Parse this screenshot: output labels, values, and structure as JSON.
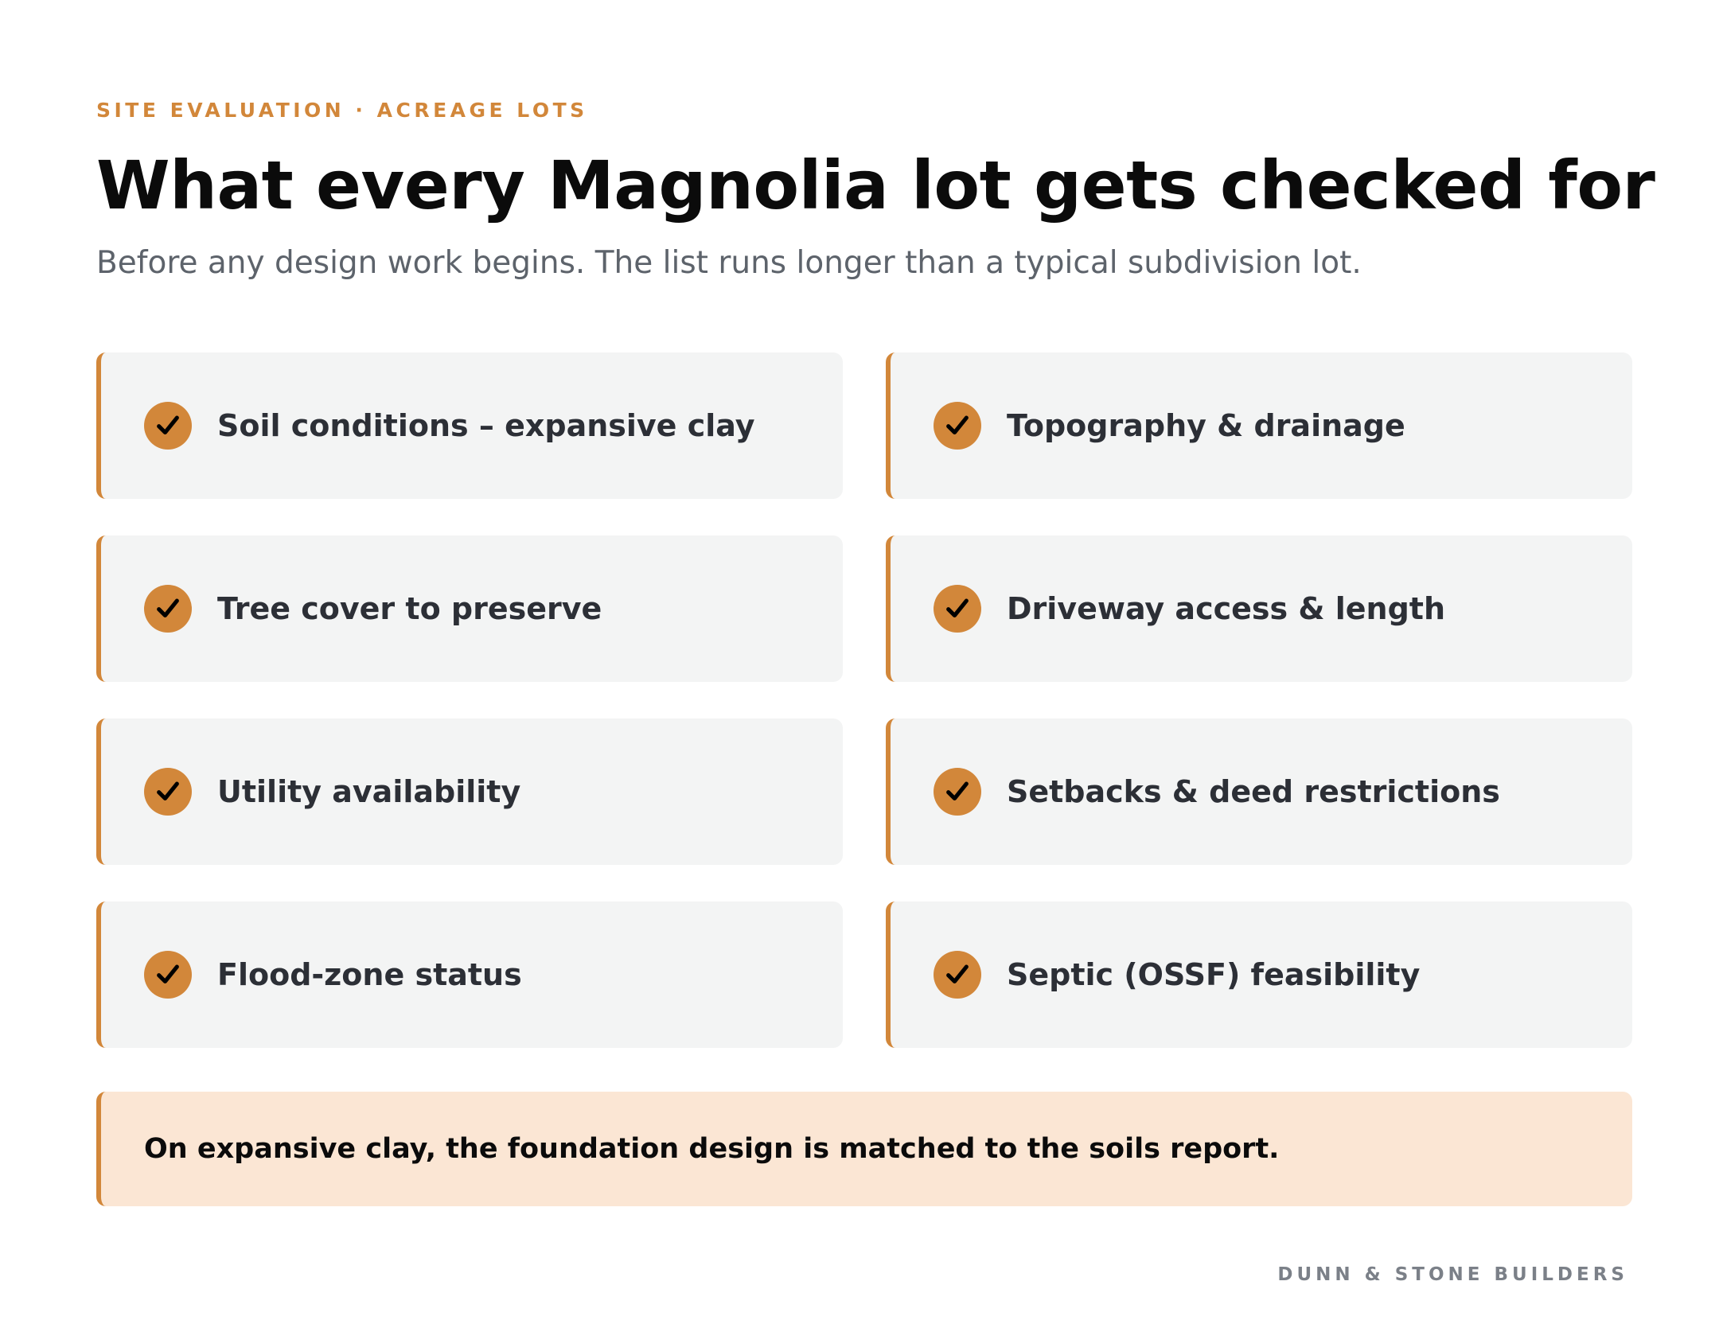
{
  "header": {
    "eyebrow": "SITE EVALUATION · ACREAGE LOTS",
    "title": "What every Magnolia lot gets checked for",
    "subtitle": "Before any design work begins. The list runs longer than a typical subdivision lot."
  },
  "checklist": {
    "icon": "checkmark-icon",
    "items": [
      {
        "label": "Soil conditions – expansive clay"
      },
      {
        "label": "Topography & drainage"
      },
      {
        "label": "Tree cover to preserve"
      },
      {
        "label": "Driveway access & length"
      },
      {
        "label": "Utility availability"
      },
      {
        "label": "Setbacks & deed restrictions"
      },
      {
        "label": "Flood-zone status"
      },
      {
        "label": "Septic (OSSF) feasibility"
      }
    ]
  },
  "note": {
    "text": "On expansive clay, the foundation design is matched to the soils report."
  },
  "footer": {
    "brand": "DUNN & STONE BUILDERS"
  },
  "colors": {
    "accent": "#d2873a",
    "card_background": "#f3f4f4",
    "note_background": "#fbe6d4",
    "title": "#0b0b0b",
    "subtitle": "#5d636b",
    "footer": "#7b8088"
  }
}
